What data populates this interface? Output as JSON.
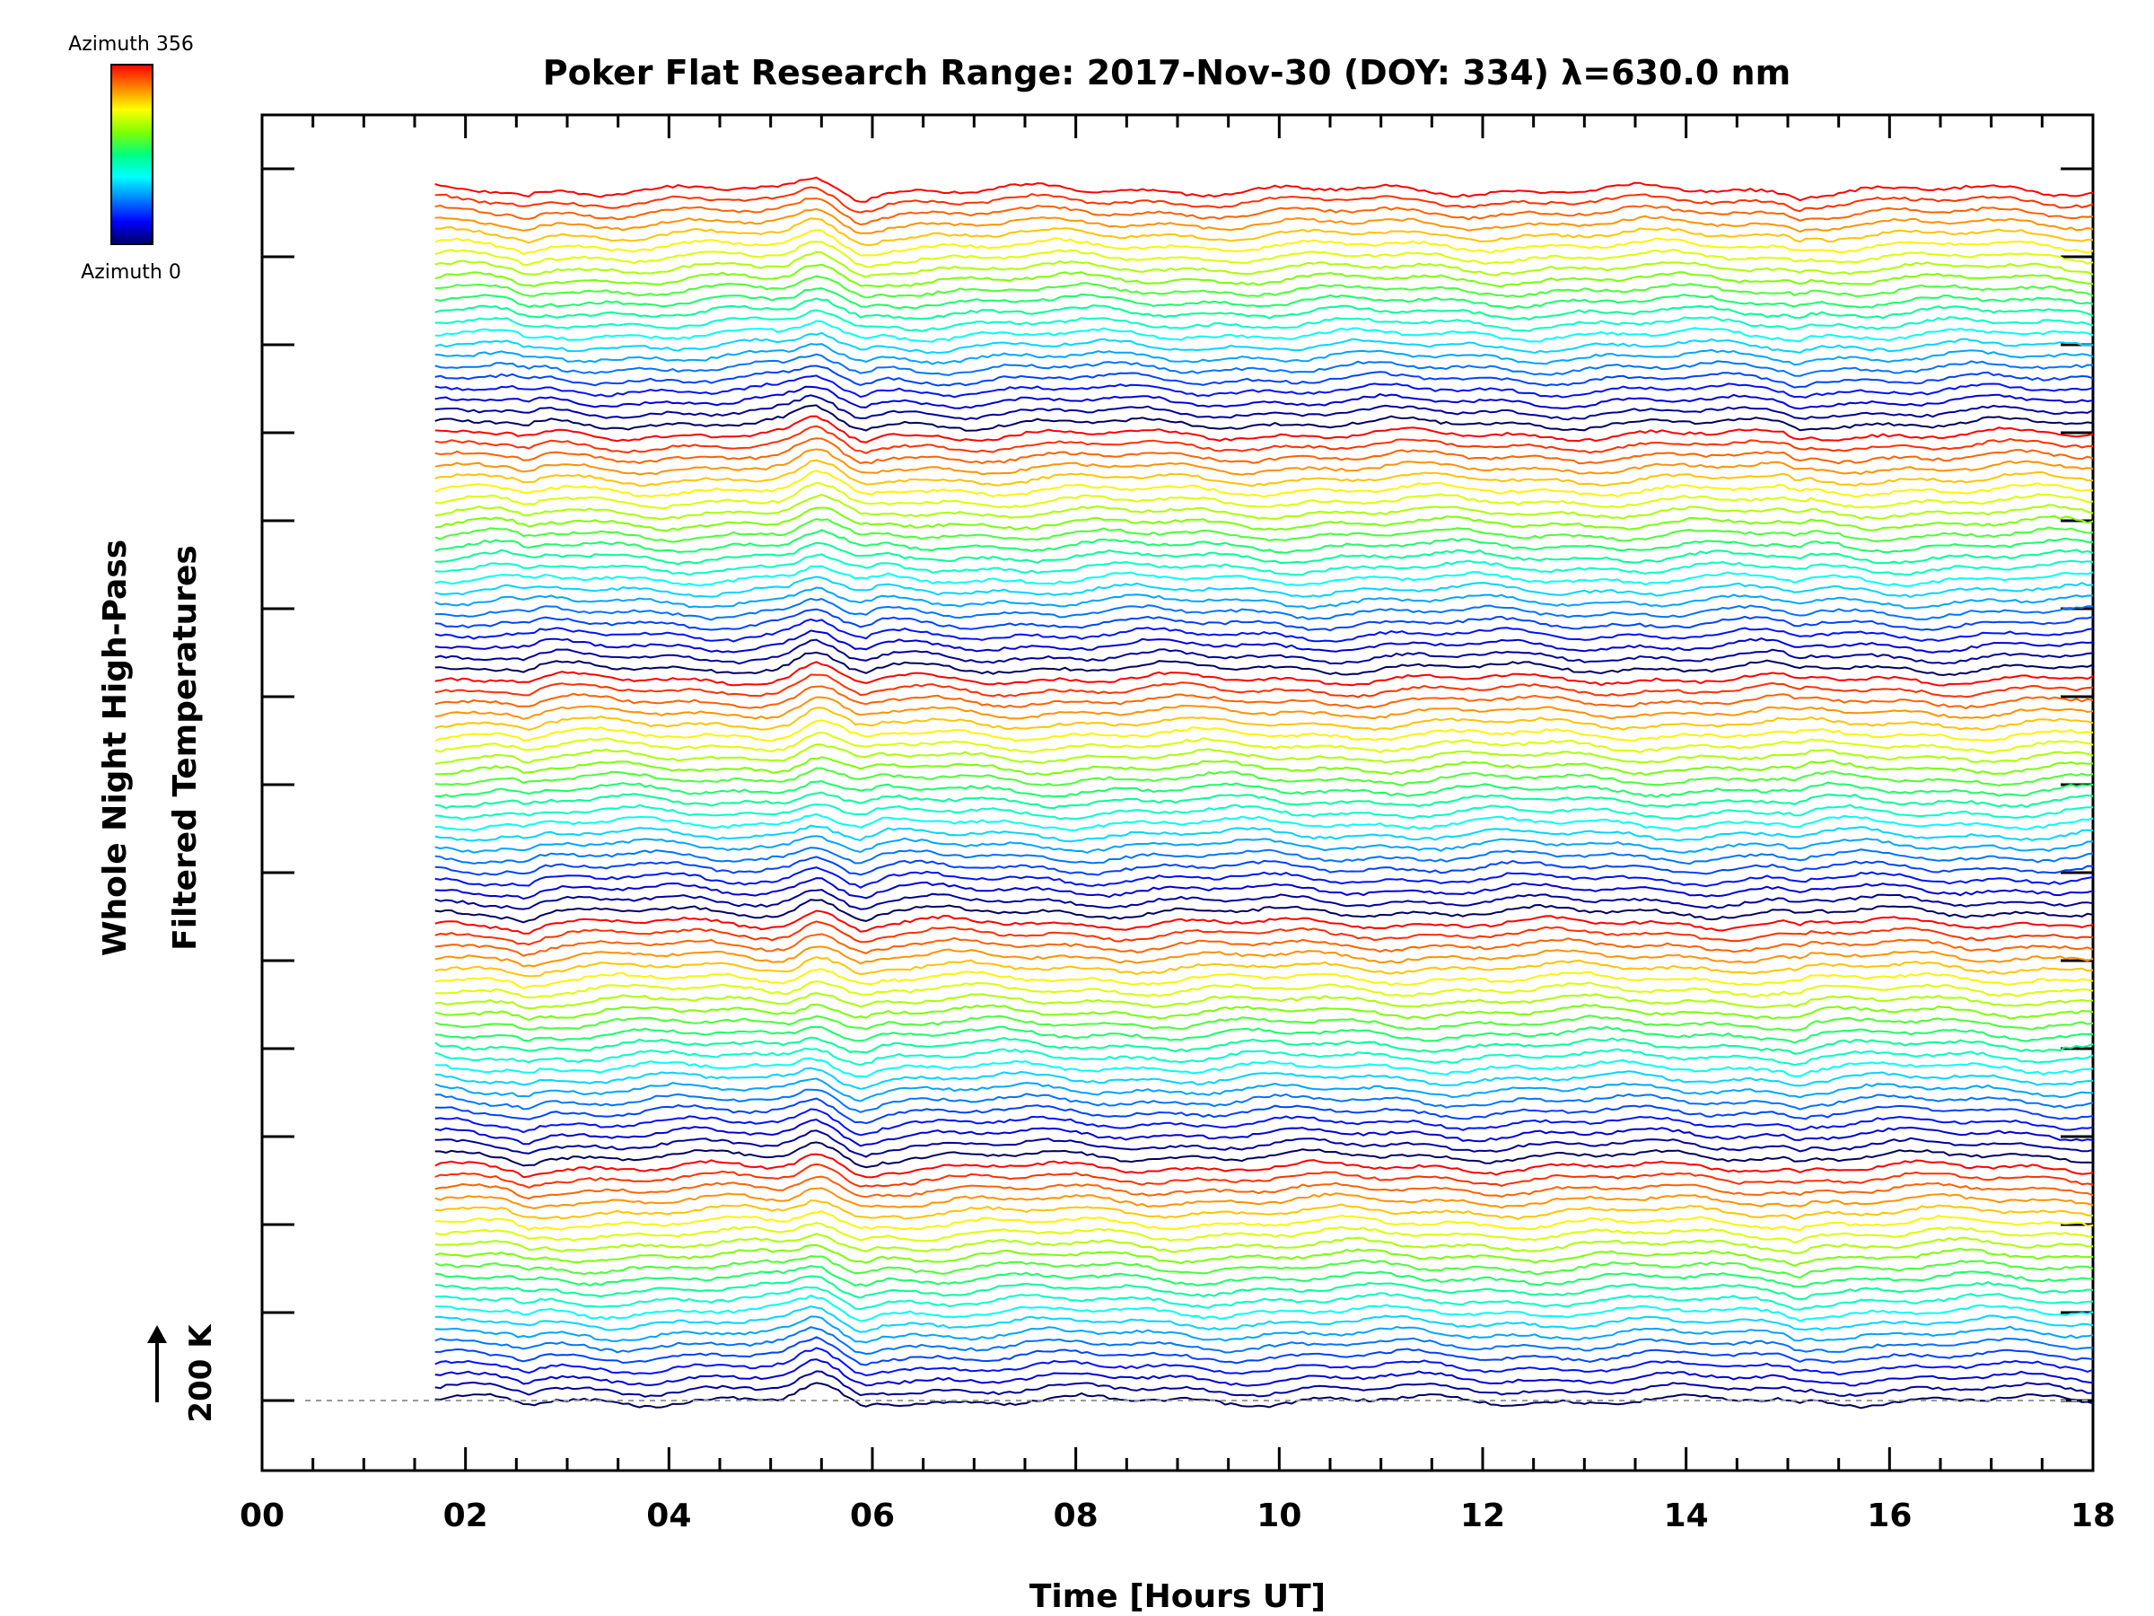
{
  "chart_data": {
    "type": "line",
    "title": "Poker Flat Research Range: 2017-Nov-30 (DOY: 334) λ=630.0 nm",
    "xlabel": "Time [Hours UT]",
    "ylabel": [
      "Whole Night High-Pass",
      "Filtered Temperatures"
    ],
    "xlim": [
      0,
      18
    ],
    "x_ticks": [
      "00",
      "02",
      "04",
      "06",
      "08",
      "10",
      "12",
      "14",
      "16",
      "18"
    ],
    "data_start_hour": 1.7,
    "data_end_hour": 18,
    "series_count": 110,
    "series_color_cycle": 22,
    "scale_label": "200 K",
    "colorbar": {
      "top_label": "Azimuth 356",
      "bottom_label": "Azimuth 0",
      "colors": [
        "#ff0000",
        "#ff8000",
        "#ffff00",
        "#80ff00",
        "#00ff80",
        "#00ffff",
        "#0080ff",
        "#0000ff",
        "#000060"
      ]
    },
    "grid": false,
    "legend": "colorbar top-left"
  }
}
